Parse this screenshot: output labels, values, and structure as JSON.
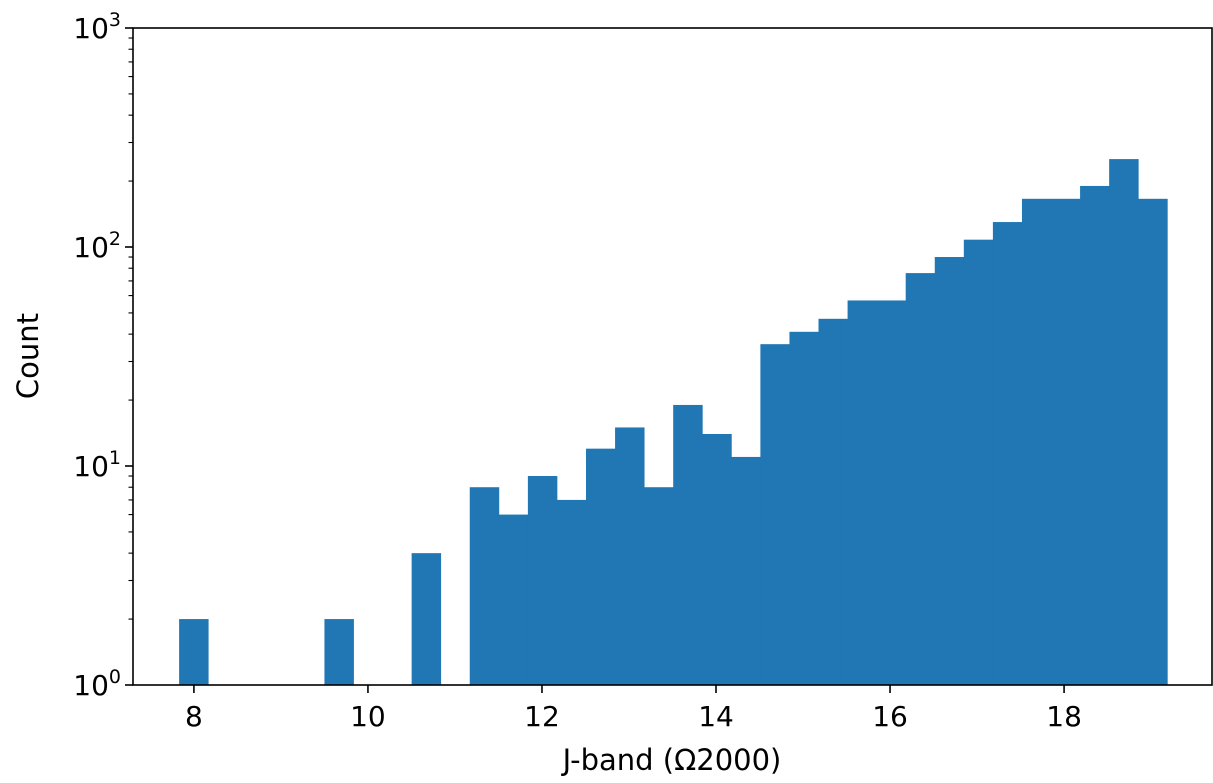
{
  "chart_data": {
    "type": "bar",
    "title": "",
    "xlabel": "J-band (Ω2000)",
    "ylabel": "Count",
    "yscale": "log",
    "xlim": [
      7.3,
      19.7
    ],
    "ylim": [
      1,
      1000
    ],
    "x_ticks": [
      8,
      10,
      12,
      14,
      16,
      18
    ],
    "y_ticks": [
      {
        "value": 1,
        "base": "10",
        "exp": "0"
      },
      {
        "value": 10,
        "base": "10",
        "exp": "1"
      },
      {
        "value": 100,
        "base": "10",
        "exp": "2"
      },
      {
        "value": 1000,
        "base": "10",
        "exp": "3"
      }
    ],
    "bin_width": 0.334,
    "bins": [
      {
        "x0": 7.83,
        "count": 2
      },
      {
        "x0": 9.5,
        "count": 2
      },
      {
        "x0": 10.502,
        "count": 4
      },
      {
        "x0": 11.17,
        "count": 8
      },
      {
        "x0": 11.504,
        "count": 6
      },
      {
        "x0": 11.838,
        "count": 9
      },
      {
        "x0": 12.172,
        "count": 7
      },
      {
        "x0": 12.506,
        "count": 12
      },
      {
        "x0": 12.84,
        "count": 15
      },
      {
        "x0": 13.174,
        "count": 8
      },
      {
        "x0": 13.508,
        "count": 19
      },
      {
        "x0": 13.842,
        "count": 14
      },
      {
        "x0": 14.176,
        "count": 11
      },
      {
        "x0": 14.51,
        "count": 36
      },
      {
        "x0": 14.844,
        "count": 41
      },
      {
        "x0": 15.178,
        "count": 47
      },
      {
        "x0": 15.512,
        "count": 57
      },
      {
        "x0": 15.846,
        "count": 57
      },
      {
        "x0": 16.18,
        "count": 76
      },
      {
        "x0": 16.514,
        "count": 90
      },
      {
        "x0": 16.848,
        "count": 108
      },
      {
        "x0": 17.182,
        "count": 130
      },
      {
        "x0": 17.516,
        "count": 166
      },
      {
        "x0": 17.85,
        "count": 166
      },
      {
        "x0": 18.184,
        "count": 190
      },
      {
        "x0": 18.518,
        "count": 252
      },
      {
        "x0": 18.852,
        "count": 166
      }
    ],
    "bar_color": "#2077b4",
    "grid": false
  }
}
